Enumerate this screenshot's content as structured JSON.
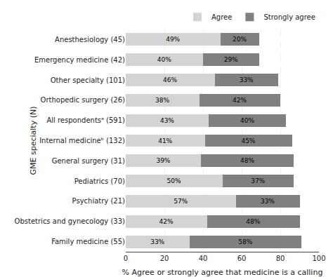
{
  "chart_data": {
    "type": "bar",
    "orientation": "horizontal",
    "stacked": true,
    "data_labels": true,
    "categories": [
      "Anesthesiology (45)",
      "Emergency medicine (42)",
      "Other specialty (101)",
      "Orthopedic surgery (26)",
      "All respondentsᵃ (591)",
      "Internal medicineᵇ (132)",
      "General surgery (31)",
      "Pediatrics (70)",
      "Psychiatry (21)",
      "Obstetrics and gynecology (33)",
      "Family medicine (55)"
    ],
    "series": [
      {
        "name": "Agree",
        "color": "#d4d4d4",
        "values": [
          49,
          40,
          46,
          38,
          43,
          41,
          39,
          50,
          57,
          42,
          33
        ],
        "value_labels": [
          "49%",
          "40%",
          "46%",
          "38%",
          "43%",
          "41%",
          "39%",
          "50%",
          "57%",
          "42%",
          "33%"
        ]
      },
      {
        "name": "Strongly agree",
        "color": "#808080",
        "values": [
          20,
          29,
          33,
          42,
          40,
          45,
          48,
          37,
          33,
          48,
          58
        ],
        "value_labels": [
          "20%",
          "29%",
          "33%",
          "42%",
          "40%",
          "45%",
          "48%",
          "37%",
          "33%",
          "48%",
          "58%"
        ]
      }
    ],
    "xlabel": "% Agree or strongly agree that medicine is a calling",
    "ylabel": "GME specialty (N)",
    "xlim": [
      0,
      100
    ],
    "xticks": [
      0,
      20,
      40,
      60,
      80,
      100
    ],
    "grid": true,
    "legend": "upper right"
  }
}
